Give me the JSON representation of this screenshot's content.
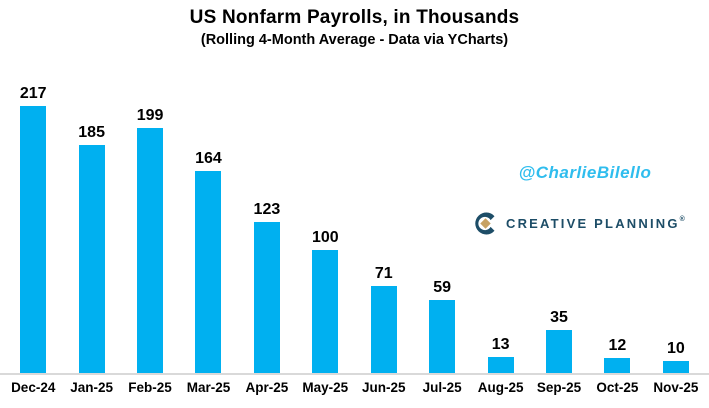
{
  "header": {
    "title": "US Nonfarm Payrolls, in Thousands",
    "subtitle": "(Rolling 4-Month Average - Data via YCharts)"
  },
  "chart_data": {
    "type": "bar",
    "title": "US Nonfarm Payrolls, in Thousands",
    "subtitle": "(Rolling 4-Month Average - Data via YCharts)",
    "categories": [
      "Dec-24",
      "Jan-25",
      "Feb-25",
      "Mar-25",
      "Apr-25",
      "May-25",
      "Jun-25",
      "Jul-25",
      "Aug-25",
      "Sep-25",
      "Oct-25",
      "Nov-25"
    ],
    "values": [
      217,
      185,
      199,
      164,
      123,
      100,
      71,
      59,
      13,
      35,
      12,
      10
    ],
    "xlabel": "",
    "ylabel": "",
    "ylim": [
      0,
      258
    ],
    "grid": false,
    "data_labels": true,
    "bar_color": "#00b0f0",
    "axis_line_color": "#d9d9d9"
  },
  "watermark": {
    "handle": "@CharlieBilello",
    "color": "#2fbdee"
  },
  "branding": {
    "name": "CREATIVE PLANNING",
    "registered_mark": "®",
    "logo_icon": "creative-planning-c-diamond",
    "navy": "#1d4d67",
    "gold": "#c7a263"
  }
}
